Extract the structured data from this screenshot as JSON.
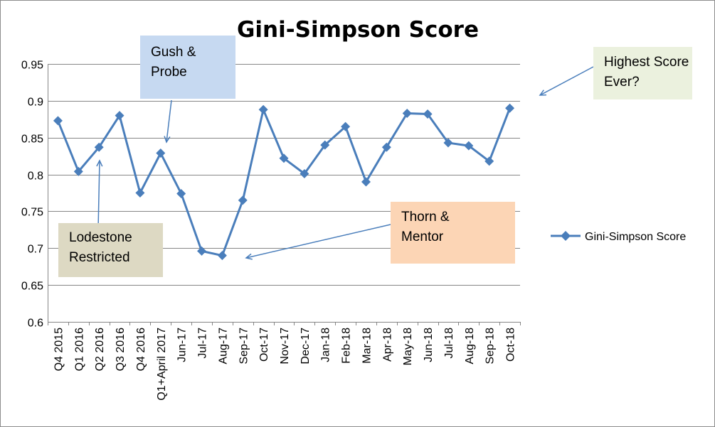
{
  "chart_data": {
    "type": "line",
    "title": "Gini-Simpson Score",
    "xlabel": "",
    "ylabel": "",
    "ylim": [
      0.6,
      0.95
    ],
    "yticks": [
      "0.95",
      "0.9",
      "0.85",
      "0.8",
      "0.75",
      "0.7",
      "0.65",
      "0.6"
    ],
    "ytick_values": [
      0.95,
      0.9,
      0.85,
      0.8,
      0.75,
      0.7,
      0.65,
      0.6
    ],
    "categories": [
      "Q4 2015",
      "Q1 2016",
      "Q2 2016",
      "Q3 2016",
      "Q4 2016",
      "Q1+April 2017",
      "Jun-17",
      "Jul-17",
      "Aug-17",
      "Sep-17",
      "Oct-17",
      "Nov-17",
      "Dec-17",
      "Jan-18",
      "Feb-18",
      "Mar-18",
      "Apr-18",
      "May-18",
      "Jun-18",
      "Jul-18",
      "Aug-18",
      "Sep-18",
      "Oct-18"
    ],
    "series": [
      {
        "name": "Gini-Simpson Score",
        "color": "#4a7ebb",
        "marker": "diamond",
        "values": [
          0.873,
          0.804,
          0.837,
          0.88,
          0.775,
          0.829,
          0.774,
          0.696,
          0.69,
          0.765,
          0.888,
          0.822,
          0.801,
          0.84,
          0.865,
          0.79,
          0.837,
          0.883,
          0.882,
          0.843,
          0.839,
          0.818,
          0.89
        ]
      }
    ],
    "grid": true,
    "legend_position": "right",
    "annotations": [
      {
        "id": "gush",
        "text": "Gush &\nProbe",
        "fill": "#c6d9f1",
        "target_category": "Q1+April 2017"
      },
      {
        "id": "lodestone",
        "text": "Lodestone\nRestricted",
        "fill": "#ddd9c3",
        "target_category": "Q2 2016"
      },
      {
        "id": "thorn",
        "text": "Thorn &\nMentor",
        "fill": "#fcd5b5",
        "target_category": "Aug-17"
      },
      {
        "id": "highest",
        "text": "Highest Score\nEver?",
        "fill": "#ebf1de",
        "target_category": "Oct-18"
      }
    ]
  }
}
